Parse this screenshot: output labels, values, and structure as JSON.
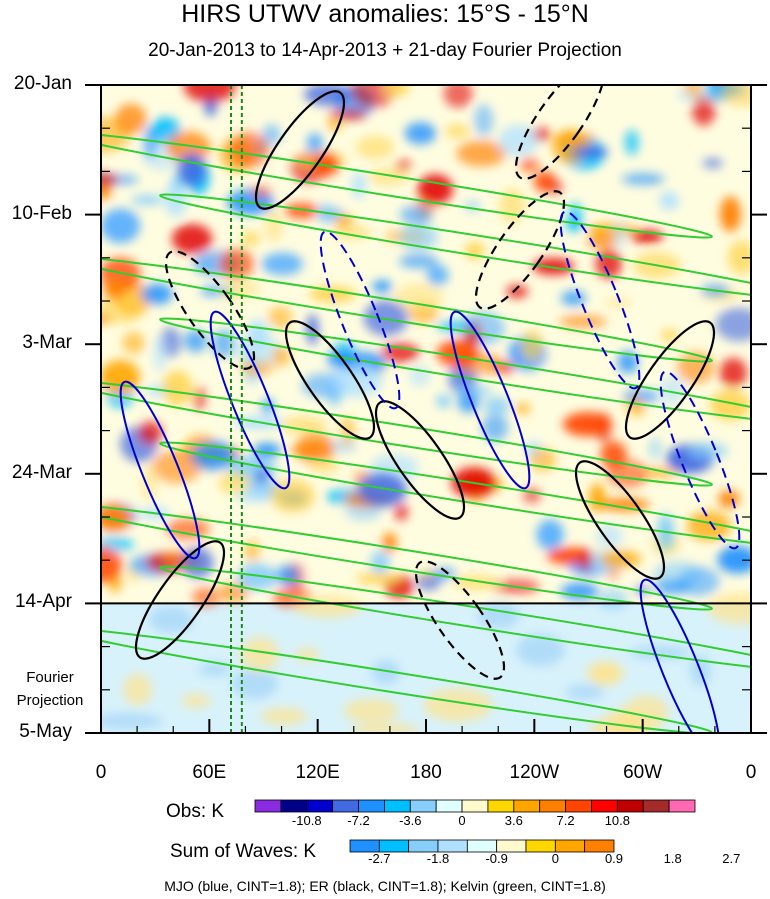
{
  "chart_data": {
    "type": "heatmap",
    "title": "HIRS UTWV anomalies: 15°S - 15°N",
    "subtitle": "20-Jan-2013 to 14-Apr-2013 + 21-day Fourier Projection",
    "x_tick_labels": [
      "0",
      "60E",
      "120E",
      "180",
      "120W",
      "60W",
      "0"
    ],
    "x_ticks_deg": [
      0,
      60,
      120,
      180,
      240,
      300,
      360
    ],
    "y_tick_labels": [
      "20-Jan",
      "10-Feb",
      "3-Mar",
      "24-Mar",
      "14-Apr",
      "5-May"
    ],
    "y_ticks_day": [
      0,
      21,
      42,
      63,
      84,
      105
    ],
    "y_range_days": [
      0,
      105
    ],
    "x_range_deg": [
      0,
      360
    ],
    "observation_end_day": 84,
    "projection_label": "Fourier Projection",
    "vertical_reference_lines_deg": [
      72,
      78
    ],
    "obs_colorbar": {
      "label": "Obs: K",
      "tick_labels": [
        "-10.8",
        "-7.2",
        "-3.6",
        "0",
        "3.6",
        "7.2",
        "10.8"
      ],
      "colors": [
        "#8a2be2",
        "#00008b",
        "#0000cd",
        "#4169e1",
        "#1e90ff",
        "#00bfff",
        "#87cefa",
        "#e0ffff",
        "#fffacd",
        "#ffd700",
        "#ffa500",
        "#ff7f00",
        "#ff4500",
        "#ff0000",
        "#c00000",
        "#a52a2a",
        "#ff69b4"
      ]
    },
    "waves_colorbar": {
      "label": "Sum of Waves: K",
      "tick_labels": [
        "-2.7",
        "-1.8",
        "-0.9",
        "0",
        "0.9",
        "1.8",
        "2.7"
      ],
      "colors": [
        "#1e90ff",
        "#00bfff",
        "#87cefa",
        "#b0e0ff",
        "#e0ffff",
        "#fffacd",
        "#ffd700",
        "#ffa500",
        "#ff7f00"
      ]
    },
    "contours": [
      {
        "name": "MJO",
        "color": "#0000cd"
      },
      {
        "name": "ER",
        "color": "#000000"
      },
      {
        "name": "Kelvin",
        "color": "#32cd32"
      }
    ],
    "footnote": "MJO (blue, CINT=1.8); ER (black, CINT=1.8); Kelvin (green, CINT=1.8)"
  }
}
